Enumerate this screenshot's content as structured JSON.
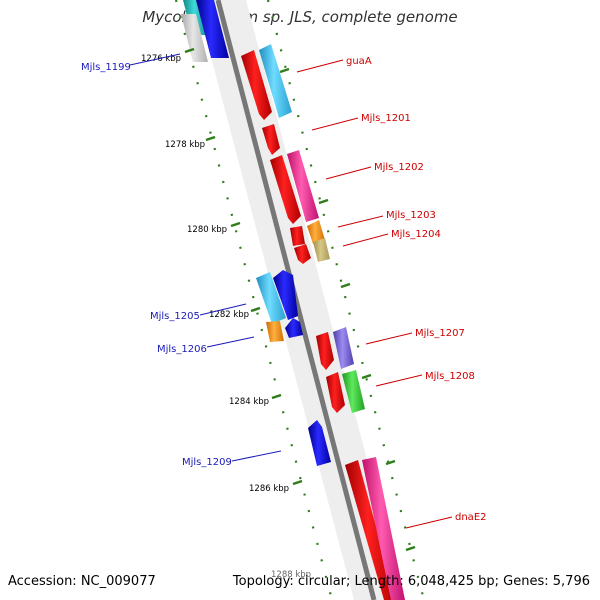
{
  "title": "Mycobacterium sp. JLS, complete genome",
  "footer": {
    "accession": "Accession: NC_009077",
    "summary": "Topology: circular; Length: 6,048,425 bp; Genes: 5,796"
  },
  "ticks": [
    "1276 kbp",
    "1278 kbp",
    "1280 kbp",
    "1282 kbp",
    "1284 kbp",
    "1286 kbp",
    "1288 kbp"
  ],
  "genes_left": [
    "Mjls_1199",
    "Mjls_1205",
    "Mjls_1206",
    "Mjls_1209"
  ],
  "genes_right": [
    "guaA",
    "Mjls_1201",
    "Mjls_1202",
    "Mjls_1203",
    "Mjls_1204",
    "Mjls_1207",
    "Mjls_1208",
    "dnaE2"
  ],
  "colors": {
    "left_label": "#1a1ab8",
    "right_label": "#cc0000",
    "backbone": "#808080",
    "tick": "#2e7d1a"
  }
}
